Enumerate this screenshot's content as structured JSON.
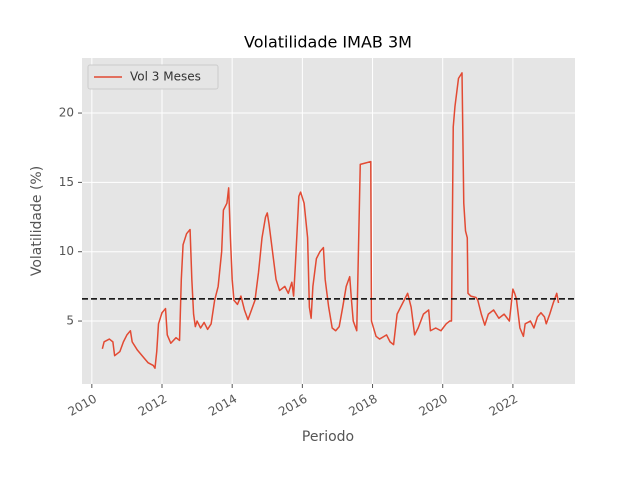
{
  "chart_data": {
    "type": "line",
    "title": "Volatilidade IMAB 3M",
    "xlabel": "Periodo",
    "ylabel": "Volatilidade (%)",
    "x": [
      2010.3,
      2010.35,
      2010.5,
      2010.6,
      2010.65,
      2010.8,
      2010.9,
      2011.0,
      2011.1,
      2011.15,
      2011.3,
      2011.5,
      2011.6,
      2011.75,
      2011.8,
      2011.85,
      2011.9,
      2012.0,
      2012.1,
      2012.15,
      2012.25,
      2012.4,
      2012.5,
      2012.55,
      2012.6,
      2012.7,
      2012.8,
      2012.85,
      2012.9,
      2012.95,
      2013.0,
      2013.1,
      2013.2,
      2013.3,
      2013.4,
      2013.5,
      2013.6,
      2013.7,
      2013.75,
      2013.85,
      2013.9,
      2013.95,
      2014.0,
      2014.05,
      2014.15,
      2014.25,
      2014.35,
      2014.45,
      2014.55,
      2014.65,
      2014.75,
      2014.85,
      2014.95,
      2015.0,
      2015.05,
      2015.15,
      2015.25,
      2015.35,
      2015.5,
      2015.6,
      2015.7,
      2015.75,
      2015.8,
      2015.9,
      2015.95,
      2016.05,
      2016.15,
      2016.2,
      2016.25,
      2016.3,
      2016.4,
      2016.5,
      2016.6,
      2016.65,
      2016.75,
      2016.85,
      2016.95,
      2017.05,
      2017.15,
      2017.25,
      2017.35,
      2017.4,
      2017.45,
      2017.55,
      2017.65,
      2017.8,
      2017.95,
      2017.97,
      2018.1,
      2018.2,
      2018.4,
      2018.5,
      2018.6,
      2018.7,
      2018.8,
      2018.9,
      2019.0,
      2019.1,
      2019.15,
      2019.2,
      2019.3,
      2019.45,
      2019.6,
      2019.65,
      2019.8,
      2019.95,
      2020.1,
      2020.2,
      2020.25,
      2020.3,
      2020.35,
      2020.45,
      2020.55,
      2020.6,
      2020.65,
      2020.7,
      2020.72,
      2020.8,
      2020.95,
      2021.0,
      2021.1,
      2021.2,
      2021.3,
      2021.45,
      2021.6,
      2021.75,
      2021.9,
      2022.0,
      2022.05,
      2022.1,
      2022.2,
      2022.3,
      2022.35,
      2022.5,
      2022.6,
      2022.7,
      2022.8,
      2022.9,
      2022.95,
      2023.05,
      2023.15,
      2023.25,
      2023.3
    ],
    "series": [
      {
        "name": "Vol 3 Meses",
        "color": "#e24a33",
        "values": [
          3.0,
          3.5,
          3.7,
          3.5,
          2.5,
          2.8,
          3.5,
          4.0,
          4.3,
          3.5,
          2.9,
          2.3,
          2.0,
          1.8,
          1.6,
          2.8,
          4.8,
          5.6,
          5.9,
          4.0,
          3.4,
          3.8,
          3.6,
          8.0,
          10.5,
          11.3,
          11.6,
          8.0,
          5.5,
          4.6,
          5.0,
          4.5,
          4.9,
          4.4,
          4.8,
          6.5,
          7.5,
          10.0,
          13.0,
          13.5,
          14.6,
          11.0,
          8.0,
          6.5,
          6.2,
          6.8,
          5.8,
          5.1,
          5.8,
          6.5,
          8.5,
          11.0,
          12.5,
          12.8,
          12.0,
          10.0,
          8.0,
          7.2,
          7.5,
          7.0,
          7.8,
          6.8,
          9.0,
          14.0,
          14.3,
          13.5,
          11.0,
          6.0,
          5.2,
          7.5,
          9.5,
          10.0,
          10.3,
          8.0,
          6.0,
          4.5,
          4.3,
          4.6,
          6.0,
          7.5,
          8.2,
          6.5,
          5.0,
          4.3,
          16.3,
          16.4,
          16.5,
          5.0,
          3.9,
          3.7,
          4.0,
          3.5,
          3.3,
          5.5,
          6.0,
          6.5,
          7.0,
          6.0,
          5.0,
          4.0,
          4.5,
          5.5,
          5.8,
          4.3,
          4.5,
          4.3,
          4.8,
          5.0,
          5.0,
          19.0,
          20.5,
          22.5,
          22.9,
          13.5,
          11.5,
          11.0,
          7.0,
          6.8,
          6.7,
          6.5,
          5.5,
          4.7,
          5.5,
          5.8,
          5.2,
          5.5,
          5.0,
          7.3,
          7.0,
          6.6,
          4.5,
          3.9,
          4.8,
          5.0,
          4.5,
          5.3,
          5.6,
          5.3,
          4.8,
          5.5,
          6.3,
          7.0,
          6.3
        ]
      }
    ],
    "hline": {
      "y": 6.6,
      "color": "#000000",
      "dashed": true
    },
    "xlim": [
      2009.72,
      2023.77
    ],
    "ylim": [
      0.46,
      23.97
    ],
    "xticks": [
      2010,
      2012,
      2014,
      2016,
      2018,
      2020,
      2022
    ],
    "yticks": [
      5,
      10,
      15,
      20
    ],
    "grid": true,
    "legend": "upper left"
  }
}
